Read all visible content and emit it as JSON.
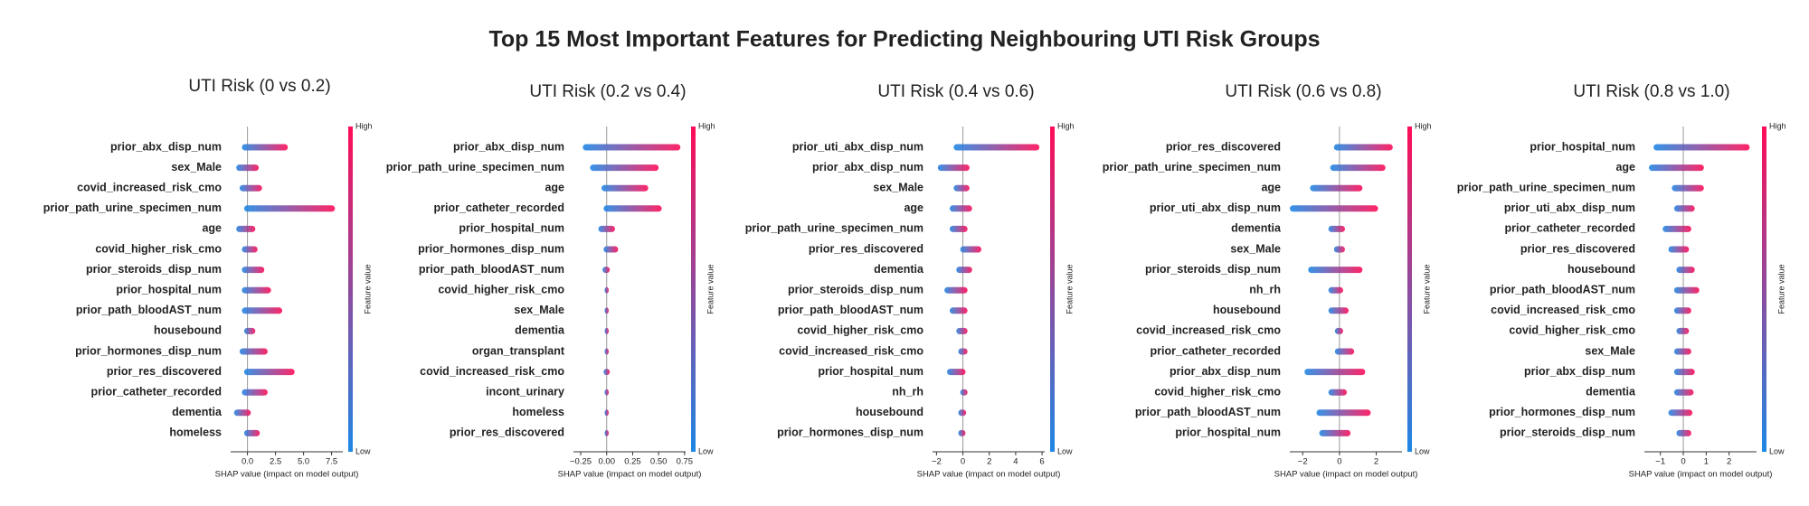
{
  "title": "Top 15 Most Important Features for Predicting Neighbouring UTI Risk Groups",
  "chart_data": [
    {
      "type": "shap_range",
      "title": "UTI Risk (0 vs 0.2)",
      "xlabel": "SHAP value (impact on model output)",
      "colorbar": {
        "label": "Feature value",
        "high": "High",
        "low": "Low",
        "colors": [
          "#1e88e5",
          "#ff0d57"
        ]
      },
      "xlim": [
        -1.5,
        8.5
      ],
      "xticks": [
        {
          "value": 0,
          "label": "0.0"
        },
        {
          "value": 2.5,
          "label": "2.5"
        },
        {
          "value": 5,
          "label": "5.0"
        },
        {
          "value": 7.5,
          "label": "7.5"
        }
      ],
      "categories": [
        "prior_abx_disp_num",
        "sex_Male",
        "covid_increased_risk_cmo",
        "prior_path_urine_specimen_num",
        "age",
        "covid_higher_risk_cmo",
        "prior_steroids_disp_num",
        "prior_hospital_num",
        "prior_path_bloodAST_num",
        "housebound",
        "prior_hormones_disp_num",
        "prior_res_discovered",
        "prior_catheter_recorded",
        "dementia",
        "homeless"
      ],
      "min": [
        -0.5,
        -1,
        -0.7,
        -0.3,
        -1,
        -0.5,
        -0.5,
        -0.5,
        -0.5,
        -0.3,
        -0.7,
        -0.3,
        -0.5,
        -1.2,
        -0.3
      ],
      "max": [
        3.6,
        1,
        1.3,
        7.8,
        0.7,
        0.9,
        1.5,
        2.1,
        3.1,
        0.7,
        1.8,
        4.2,
        1.8,
        0.3,
        1.1
      ]
    },
    {
      "type": "shap_range",
      "title": "UTI Risk (0.2 vs 0.4)",
      "xlabel": "SHAP value (impact on model output)",
      "colorbar": {
        "label": "Feature value",
        "high": "High",
        "low": "Low",
        "colors": [
          "#1e88e5",
          "#ff0d57"
        ]
      },
      "xlim": [
        -0.32,
        0.76
      ],
      "xticks": [
        {
          "value": -0.25,
          "label": "−0.25"
        },
        {
          "value": 0,
          "label": "0.00"
        },
        {
          "value": 0.25,
          "label": "0.25"
        },
        {
          "value": 0.5,
          "label": "0.50"
        },
        {
          "value": 0.75,
          "label": "0.75"
        }
      ],
      "categories": [
        "prior_abx_disp_num",
        "prior_path_urine_specimen_num",
        "age",
        "prior_catheter_recorded",
        "prior_hospital_num",
        "prior_hormones_disp_num",
        "prior_path_bloodAST_num",
        "covid_higher_risk_cmo",
        "sex_Male",
        "dementia",
        "organ_transplant",
        "covid_increased_risk_cmo",
        "incont_urinary",
        "homeless",
        "prior_res_discovered"
      ],
      "min": [
        -0.23,
        -0.16,
        -0.05,
        -0.03,
        -0.08,
        -0.03,
        -0.04,
        -0.02,
        -0.02,
        -0.02,
        -0.02,
        -0.03,
        -0.02,
        -0.02,
        -0.02
      ],
      "max": [
        0.71,
        0.5,
        0.4,
        0.53,
        0.08,
        0.11,
        0.03,
        0.02,
        0.02,
        0.02,
        0.02,
        0.03,
        0.02,
        0.02,
        0.02
      ]
    },
    {
      "type": "shap_range",
      "title": "UTI Risk (0.4 vs 0.6)",
      "xlabel": "SHAP value (impact on model output)",
      "colorbar": {
        "label": "Feature value",
        "high": "High",
        "low": "Low",
        "colors": [
          "#1e88e5",
          "#ff0d57"
        ]
      },
      "xlim": [
        -2.3,
        6.2
      ],
      "xticks": [
        {
          "value": -2,
          "label": "−2"
        },
        0,
        2,
        4,
        6
      ],
      "categories": [
        "prior_uti_abx_disp_num",
        "prior_abx_disp_num",
        "sex_Male",
        "age",
        "prior_path_urine_specimen_num",
        "prior_res_discovered",
        "dementia",
        "prior_steroids_disp_num",
        "prior_path_bloodAST_num",
        "covid_higher_risk_cmo",
        "covid_increased_risk_cmo",
        "prior_hospital_num",
        "nh_rh",
        "housebound",
        "prior_hormones_disp_num"
      ],
      "min": [
        -0.7,
        -1.9,
        -0.7,
        -1,
        -1,
        -0.2,
        -0.5,
        -1.4,
        -1,
        -0.5,
        -0.35,
        -1.2,
        -0.2,
        -0.35,
        -0.35
      ],
      "max": [
        5.8,
        0.5,
        0.5,
        0.7,
        0.35,
        1.4,
        0.7,
        0.35,
        0.35,
        0.35,
        0.35,
        0.2,
        0.35,
        0.25,
        0.2
      ]
    },
    {
      "type": "shap_range",
      "title": "UTI Risk (0.6 vs 0.8)",
      "xlabel": "SHAP value (impact on model output)",
      "colorbar": {
        "label": "Feature value",
        "high": "High",
        "low": "Low",
        "colors": [
          "#1e88e5",
          "#ff0d57"
        ]
      },
      "xlim": [
        -2.7,
        3.4
      ],
      "xticks": [
        {
          "value": -2,
          "label": "−2"
        },
        0,
        2
      ],
      "categories": [
        "prior_res_discovered",
        "prior_path_urine_specimen_num",
        "age",
        "prior_uti_abx_disp_num",
        "dementia",
        "sex_Male",
        "prior_steroids_disp_num",
        "nh_rh",
        "housebound",
        "covid_increased_risk_cmo",
        "prior_catheter_recorded",
        "prior_abx_disp_num",
        "covid_higher_risk_cmo",
        "prior_path_bloodAST_num",
        "prior_hospital_num"
      ],
      "min": [
        -0.3,
        -0.5,
        -1.6,
        -2.7,
        -0.6,
        -0.3,
        -1.7,
        -0.6,
        -0.6,
        -0.25,
        -0.25,
        -1.9,
        -0.6,
        -1.25,
        -1.1
      ],
      "max": [
        2.9,
        2.5,
        1.25,
        2.1,
        0.3,
        0.3,
        1.25,
        0.2,
        0.5,
        0.2,
        0.8,
        1.4,
        0.4,
        1.7,
        0.6
      ]
    },
    {
      "type": "shap_range",
      "title": "UTI Risk (0.8 vs 1.0)",
      "xlabel": "SHAP value (impact on model output)",
      "colorbar": {
        "label": "Feature value",
        "high": "High",
        "low": "Low",
        "colors": [
          "#1e88e5",
          "#ff0d57"
        ]
      },
      "xlim": [
        -1.7,
        3.2
      ],
      "xticks": [
        {
          "value": -1,
          "label": "−1"
        },
        0,
        1,
        2
      ],
      "categories": [
        "prior_hospital_num",
        "age",
        "prior_path_urine_specimen_num",
        "prior_uti_abx_disp_num",
        "prior_catheter_recorded",
        "prior_res_discovered",
        "housebound",
        "prior_path_bloodAST_num",
        "covid_increased_risk_cmo",
        "covid_higher_risk_cmo",
        "sex_Male",
        "prior_abx_disp_num",
        "dementia",
        "prior_hormones_disp_num",
        "prior_steroids_disp_num"
      ],
      "min": [
        -1.3,
        -1.5,
        -0.5,
        -0.4,
        -0.9,
        -0.65,
        -0.3,
        -0.4,
        -0.4,
        -0.3,
        -0.4,
        -0.4,
        -0.4,
        -0.65,
        -0.3
      ],
      "max": [
        2.9,
        0.9,
        0.9,
        0.5,
        0.35,
        0.25,
        0.5,
        0.7,
        0.35,
        0.25,
        0.35,
        0.5,
        0.45,
        0.4,
        0.35
      ]
    }
  ]
}
